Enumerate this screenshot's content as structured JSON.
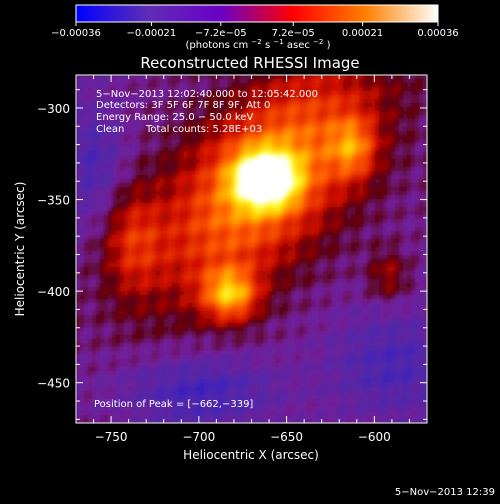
{
  "chart_data": {
    "type": "heatmap",
    "title": "Reconstructed RHESSI Image",
    "xlabel": "Heliocentric X (arcsec)",
    "ylabel": "Heliocentric Y (arcsec)",
    "xlim": [
      -770,
      -570
    ],
    "ylim": [
      -472,
      -282
    ],
    "xticks": [
      -750,
      -700,
      -650,
      -600
    ],
    "xtick_labels": [
      "−750",
      "−700",
      "−650",
      "−600"
    ],
    "yticks": [
      -300,
      -350,
      -400,
      -450
    ],
    "ytick_labels": [
      "−300",
      "−350",
      "−400",
      "−450"
    ],
    "colorbar": {
      "range": [
        -0.00036,
        0.00036
      ],
      "ticks": [
        -0.00036,
        -0.00021,
        -7.2e-05,
        7.2e-05,
        0.00021,
        0.00036
      ],
      "tick_labels": [
        "−0.00036",
        "−0.00021",
        "−7.2e−05",
        "7.2e−05",
        "0.00021",
        "0.00036"
      ],
      "label_base": "(photons cm",
      "label_sup1": "−2",
      "label_mid": " s",
      "label_sup2": "−1",
      "label_mid2": " asec",
      "label_sup3": "−2",
      "label_end": ")"
    },
    "annotations": {
      "time_range": "5−Nov−2013 12:02:40.000 to 12:05:42.000",
      "detectors": "Detectors: 3F 5F 6F 7F 8F 9F, Att 0",
      "energy_range": "Energy Range: 25.0 − 50.0 keV",
      "method": "Clean",
      "total_counts": "Total counts: 5.28E+03",
      "peak_position": "Position of Peak = [−662,−339]"
    },
    "peak": [
      -662,
      -339
    ],
    "timestamp": "5−Nov−2013 12:39"
  },
  "colors": {
    "background": "#000000",
    "text": "#ffffff",
    "colormap": [
      "#0000ff",
      "#5f2db4",
      "#6a00c8",
      "#ff0000",
      "#ff8000",
      "#ffff00",
      "#ffffff"
    ]
  }
}
